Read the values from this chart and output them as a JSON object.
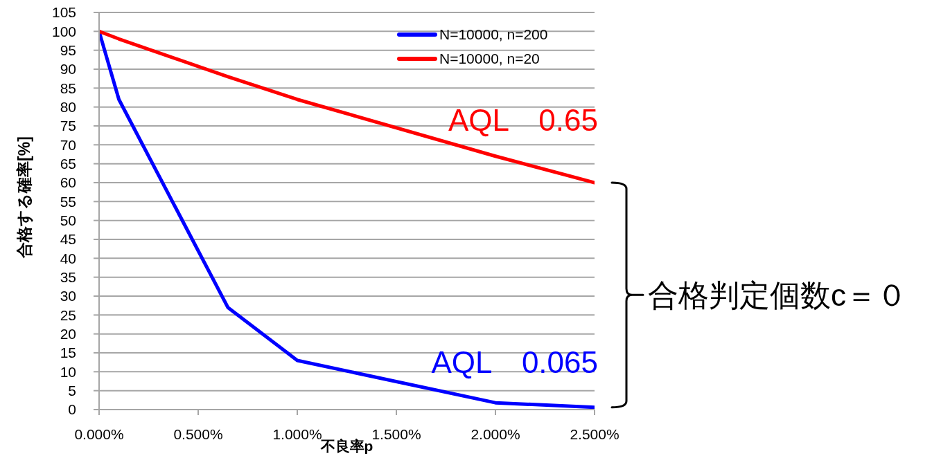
{
  "chart_data": {
    "type": "line",
    "xlabel": "不良率p",
    "ylabel": "合格する確率[%]",
    "x": [
      0,
      0.1,
      0.65,
      1,
      2,
      2.5
    ],
    "series": [
      {
        "name": "N=10000, n=200",
        "color": "#0000ff",
        "values": [
          100,
          82,
          27,
          13,
          1.8,
          0.6
        ]
      },
      {
        "name": "N=10000, n=20",
        "color": "#ff0000",
        "values": [
          100,
          98,
          88,
          82,
          67,
          60
        ]
      }
    ],
    "xlim": [
      0,
      2.5
    ],
    "xticks": [
      {
        "value": 0,
        "label": "0.000%"
      },
      {
        "value": 0.5,
        "label": "0.500%"
      },
      {
        "value": 1,
        "label": "1.000%"
      },
      {
        "value": 1.5,
        "label": "1.500%"
      },
      {
        "value": 2,
        "label": "2.000%"
      },
      {
        "value": 2.5,
        "label": "2.500%"
      }
    ],
    "ylim": [
      0,
      105
    ],
    "yticks": [
      0,
      5,
      10,
      15,
      20,
      25,
      30,
      35,
      40,
      45,
      50,
      55,
      60,
      65,
      70,
      75,
      80,
      85,
      90,
      95,
      100,
      105
    ],
    "grid": "y",
    "legend": "top right",
    "marker": "none",
    "line_style": "solid",
    "annotations": [
      "AQL　0.065",
      "AQL　0.65",
      "合格判定個数c＝０"
    ]
  }
}
